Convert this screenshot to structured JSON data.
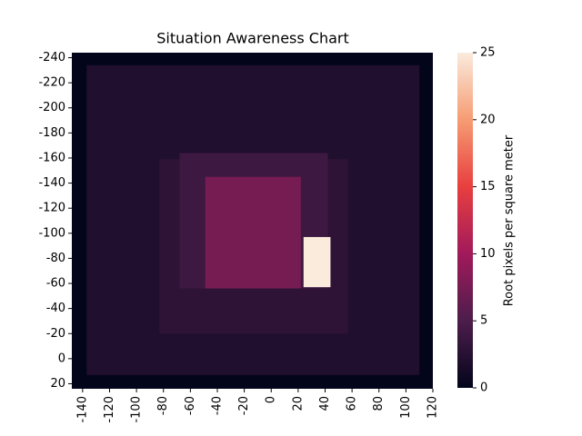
{
  "chart_data": {
    "type": "heatmap",
    "title": "Situation Awareness Chart",
    "colorbar_label": "Root pixels per square meter",
    "xlim": [
      -148,
      120
    ],
    "ylim": [
      -244,
      24
    ],
    "y_inverted": true,
    "xticks": [
      -140,
      -120,
      -100,
      -80,
      -60,
      -40,
      -20,
      0,
      20,
      40,
      60,
      80,
      100,
      120
    ],
    "yticks": [
      -240,
      -220,
      -200,
      -180,
      -160,
      -140,
      -120,
      -100,
      -80,
      -60,
      -40,
      -20,
      0,
      20
    ],
    "clim": [
      0,
      25
    ],
    "cticks": [
      0,
      5,
      10,
      15,
      20,
      25
    ],
    "colormap": [
      [
        0,
        "#03051a"
      ],
      [
        0.2,
        "#4c1d4b"
      ],
      [
        0.4,
        "#a11a5b"
      ],
      [
        0.6,
        "#e83f3f"
      ],
      [
        0.8,
        "#f69c73"
      ],
      [
        1,
        "#faebdd"
      ]
    ],
    "regions": [
      {
        "x": [
          -148,
          120
        ],
        "y": [
          -244,
          24
        ],
        "value": 0
      },
      {
        "x": [
          -137,
          110
        ],
        "y": [
          -234,
          13
        ],
        "value": 2
      },
      {
        "x": [
          -83,
          57
        ],
        "y": [
          -159,
          -20
        ],
        "value": 3
      },
      {
        "x": [
          -68,
          42
        ],
        "y": [
          -164,
          -56
        ],
        "value": 4
      },
      {
        "x": [
          -49,
          22
        ],
        "y": [
          -145,
          -56
        ],
        "value": 7.5
      },
      {
        "x": [
          24,
          44
        ],
        "y": [
          -97,
          -57
        ],
        "value": 25
      }
    ]
  }
}
